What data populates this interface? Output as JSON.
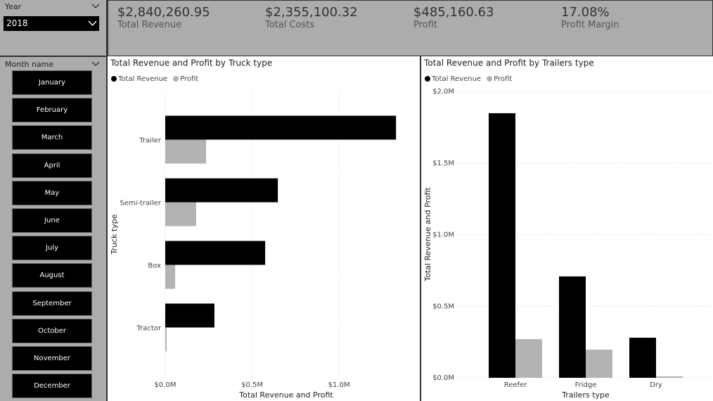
{
  "year_slicer": {
    "label": "Year",
    "selected": "2018"
  },
  "month_slicer": {
    "label": "Month name",
    "items": [
      "January",
      "February",
      "March",
      "April",
      "May",
      "June",
      "July",
      "August",
      "September",
      "October",
      "November",
      "December"
    ]
  },
  "cards": [
    {
      "value": "$2,840,260.95",
      "label": "Total Revenue"
    },
    {
      "value": "$2,355,100.32",
      "label": "Total Costs"
    },
    {
      "value": "$485,160.63",
      "label": "Profit"
    },
    {
      "value": "17.08%",
      "label": "Profit Margin"
    }
  ],
  "chart_data": [
    {
      "type": "bar",
      "orientation": "horizontal",
      "title": "Total Revenue and Profit by Truck type",
      "categories": [
        "Trailer",
        "Semi-trailer",
        "Box",
        "Tractor"
      ],
      "series": [
        {
          "name": "Total Revenue",
          "color": "#000000",
          "values": [
            1328000,
            648000,
            575000,
            283000
          ]
        },
        {
          "name": "Profit",
          "color": "#b3b3b3",
          "values": [
            235000,
            178000,
            57000,
            8000
          ]
        }
      ],
      "xlim": [
        0,
        1400000
      ],
      "xticks": [
        {
          "value": 0,
          "label": "$0.0M"
        },
        {
          "value": 500000,
          "label": "$0.5M"
        },
        {
          "value": 1000000,
          "label": "$1.0M"
        }
      ],
      "x_label": "Total Revenue and Profit",
      "y_label": "Truck type",
      "grid": true
    },
    {
      "type": "bar",
      "orientation": "vertical",
      "title": "Total Revenue and Profit by Trailers type",
      "categories": [
        "Reefer",
        "Fridge",
        "Dry"
      ],
      "series": [
        {
          "name": "Total Revenue",
          "color": "#000000",
          "values": [
            1848000,
            708000,
            280000
          ]
        },
        {
          "name": "Profit",
          "color": "#b3b3b3",
          "values": [
            270000,
            197000,
            10000
          ]
        }
      ],
      "ylim": [
        0,
        2000000
      ],
      "yticks": [
        {
          "value": 0,
          "label": "$0.0M"
        },
        {
          "value": 500000,
          "label": "$0.5M"
        },
        {
          "value": 1000000,
          "label": "$1.0M"
        },
        {
          "value": 1500000,
          "label": "$1.5M"
        },
        {
          "value": 2000000,
          "label": "$2.0M"
        }
      ],
      "x_label": "Trailers type",
      "y_label": "Total Revenue and Profit",
      "grid": true
    }
  ]
}
